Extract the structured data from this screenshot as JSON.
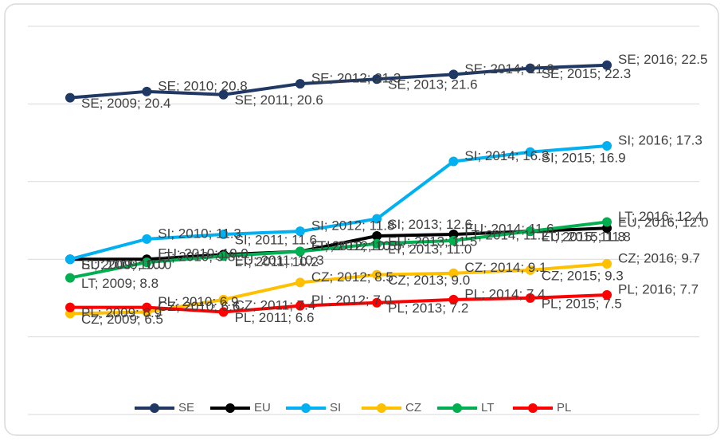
{
  "chart_data": {
    "type": "line",
    "categories": [
      "2009",
      "2010",
      "2011",
      "2012",
      "2013",
      "2014",
      "2015",
      "2016"
    ],
    "ylim": [
      0,
      25
    ],
    "yticks": [
      0,
      5,
      10,
      15,
      20,
      25
    ],
    "grid": true,
    "legend": "bottom",
    "series": [
      {
        "name": "SE",
        "color": "#1f3864",
        "values": [
          20.4,
          20.8,
          20.6,
          21.3,
          21.6,
          21.9,
          22.3,
          22.5
        ],
        "value_labels": [
          "SE; 2009; 20.4",
          "SE; 2010; 20.8",
          "SE; 2011; 20.6",
          "SE; 2012; 21.3",
          "SE; 2013; 21.6",
          "SE; 2014; 21.9",
          "SE; 2015; 22.3",
          "SE; 2016; 22.5"
        ]
      },
      {
        "name": "EU",
        "color": "#000000",
        "values": [
          10.0,
          10.0,
          10.3,
          10.5,
          11.5,
          11.6,
          11.8,
          12.0
        ],
        "value_labels": [
          "EU; 2009; 10.0",
          "EU; 2010; 10.0",
          "EU; 2011; 10.3",
          "EU; 2012; 10.5",
          "EU; 2013; 11.5",
          "EU; 2014; 11.6",
          "EU; 2015; 11.8",
          "EU; 2016; 12.0"
        ]
      },
      {
        "name": "SI",
        "color": "#00b0f0",
        "values": [
          10.0,
          11.3,
          11.6,
          11.8,
          12.6,
          16.3,
          16.9,
          17.3
        ],
        "value_labels": [
          "SI; 2009; 10.0",
          "SI; 2010; 11.3",
          "SI; 2011; 11.6",
          "SI; 2012; 11.8",
          "SI; 2013; 12.6",
          "SI; 2014; 16.3",
          "SI; 2015; 16.9",
          "SI; 2016; 17.3"
        ]
      },
      {
        "name": "CZ",
        "color": "#ffc000",
        "values": [
          6.5,
          6.6,
          7.4,
          8.5,
          9.0,
          9.1,
          9.3,
          9.7
        ],
        "value_labels": [
          "CZ; 2009; 6.5",
          "CZ; 2010; 6.6",
          "CZ; 2011; 7.4",
          "CZ; 2012; 8.5",
          "CZ; 2013; 9.0",
          "CZ; 2014; 9.1",
          "CZ; 2015; 9.3",
          "CZ; 2016; 9.7"
        ]
      },
      {
        "name": "LT",
        "color": "#00b050",
        "values": [
          8.8,
          9.8,
          10.2,
          10.5,
          11.0,
          11.2,
          11.8,
          12.4
        ],
        "value_labels": [
          "LT; 2009; 8.8",
          "LT; 2010; 9.8",
          "LT; 2011; 10.2",
          "LT; 2012; 10.5",
          "LT; 2013; 11.0",
          "LT; 2014; 11.2",
          "LT; 2015; 11.8",
          "LT; 2016; 12.4"
        ]
      },
      {
        "name": "PL",
        "color": "#ff0000",
        "values": [
          6.9,
          6.9,
          6.6,
          7.0,
          7.2,
          7.4,
          7.5,
          7.7
        ],
        "value_labels": [
          "PL; 2009; 6.9",
          "PL; 2010; 6.9",
          "PL; 2011; 6.6",
          "PL; 2012; 7.0",
          "PL; 2013; 7.2",
          "PL; 2014; 7.4",
          "PL; 2015; 7.5",
          "PL; 2016; 7.7"
        ]
      }
    ]
  }
}
